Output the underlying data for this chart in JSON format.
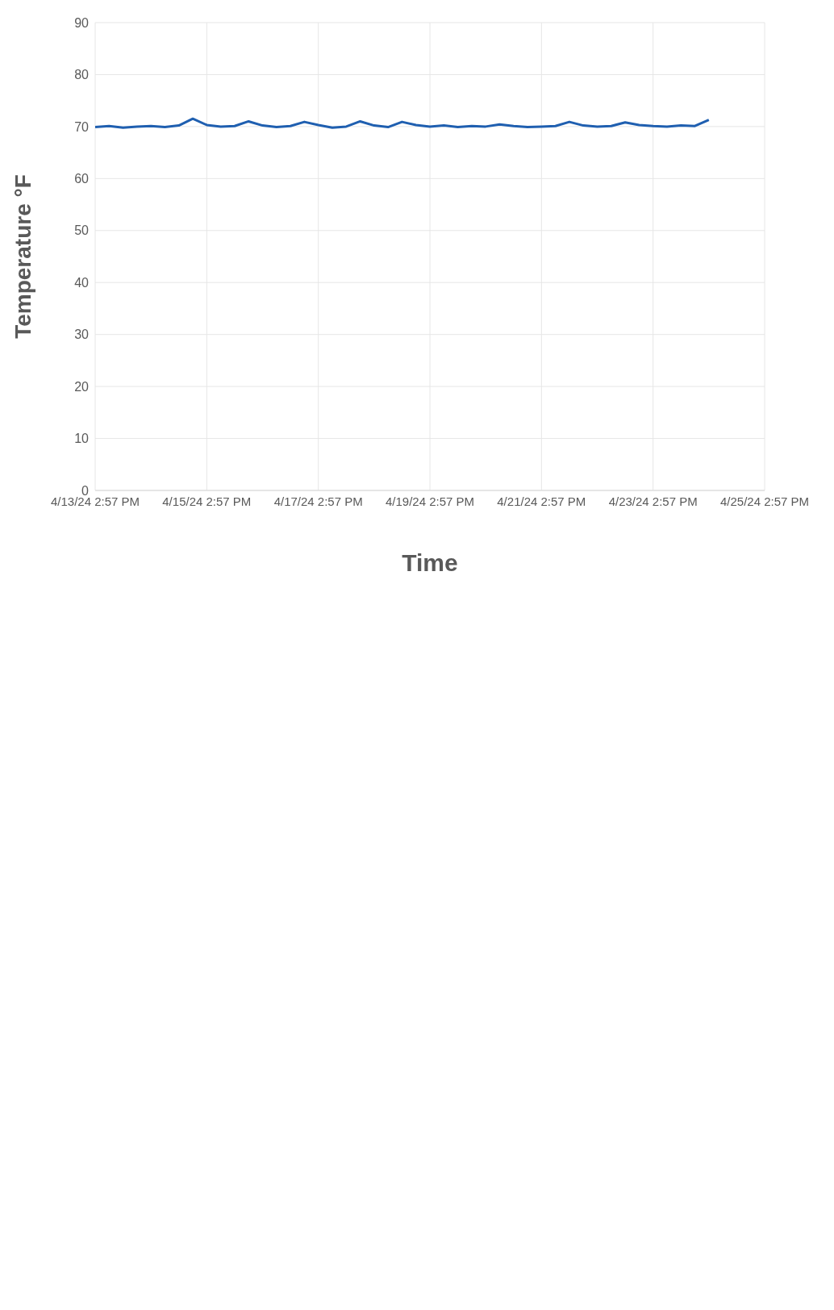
{
  "chart_data": {
    "type": "line",
    "xlabel": "Time",
    "ylabel": "Temperature °F",
    "x": [
      "--04-13T14:57",
      "--04-13T20:57",
      "--04-14T02:57",
      "--04-14T08:57",
      "--04-14T14:57",
      "--04-14T20:57",
      "--04-15T02:57",
      "--04-15T08:57",
      "--04-15T14:57",
      "--04-15T20:57",
      "--04-16T02:57",
      "--04-16T08:57",
      "--04-16T14:57",
      "--04-16T20:57",
      "--04-17T02:57",
      "--04-17T08:57",
      "--04-17T14:57",
      "--04-17T20:57",
      "--04-18T02:57",
      "--04-18T08:57",
      "--04-18T14:57",
      "--04-18T20:57",
      "--04-19T02:57",
      "--04-19T08:57",
      "--04-19T14:57",
      "--04-19T20:57",
      "--04-20T02:57",
      "--04-20T08:57",
      "--04-20T14:57",
      "--04-20T20:57",
      "--04-21T02:57",
      "--04-21T08:57",
      "--04-21T14:57",
      "--04-21T20:57",
      "--04-22T02:57",
      "--04-22T08:57",
      "--04-22T14:57",
      "--04-22T20:57",
      "--04-23T02:57",
      "--04-23T08:57",
      "--04-23T14:57",
      "--04-23T20:57",
      "--04-24T02:57",
      "--04-24T08:57",
      "--04-24T14:57"
    ],
    "series": [
      {
        "color": "#1f5fb0",
        "values": [
          69.9,
          70.1,
          69.8,
          70.0,
          70.1,
          69.9,
          70.2,
          71.5,
          70.3,
          70.0,
          70.1,
          71.0,
          70.2,
          69.9,
          70.1,
          70.9,
          70.3,
          69.8,
          70.0,
          71.0,
          70.2,
          69.9,
          70.9,
          70.3,
          70.0,
          70.2,
          69.9,
          70.1,
          70.0,
          70.4,
          70.1,
          69.9,
          70.0,
          70.1,
          70.9,
          70.2,
          70.0,
          70.1,
          70.8,
          70.3,
          70.1,
          70.0,
          70.2,
          70.1,
          71.3
        ]
      }
    ],
    "xlim": [
      "--04-13T14:57",
      "--04-25T14:57"
    ],
    "xticks": [
      {
        "value": "--04-13T14:57",
        "label": "4/13/24 2:57 PM"
      },
      {
        "value": "--04-15T14:57",
        "label": "4/15/24 2:57 PM"
      },
      {
        "value": "--04-17T14:57",
        "label": "4/17/24 2:57 PM"
      },
      {
        "value": "--04-19T14:57",
        "label": "4/19/24 2:57 PM"
      },
      {
        "value": "--04-21T14:57",
        "label": "4/21/24 2:57 PM"
      },
      {
        "value": "--04-23T14:57",
        "label": "4/23/24 2:57 PM"
      },
      {
        "value": "--04-25T14:57",
        "label": "4/25/24 2:57 PM"
      }
    ],
    "ylim": [
      0,
      90
    ],
    "yticks": [
      0,
      10,
      20,
      30,
      40,
      50,
      60,
      70,
      80,
      90
    ],
    "grid": true,
    "legend": false
  }
}
